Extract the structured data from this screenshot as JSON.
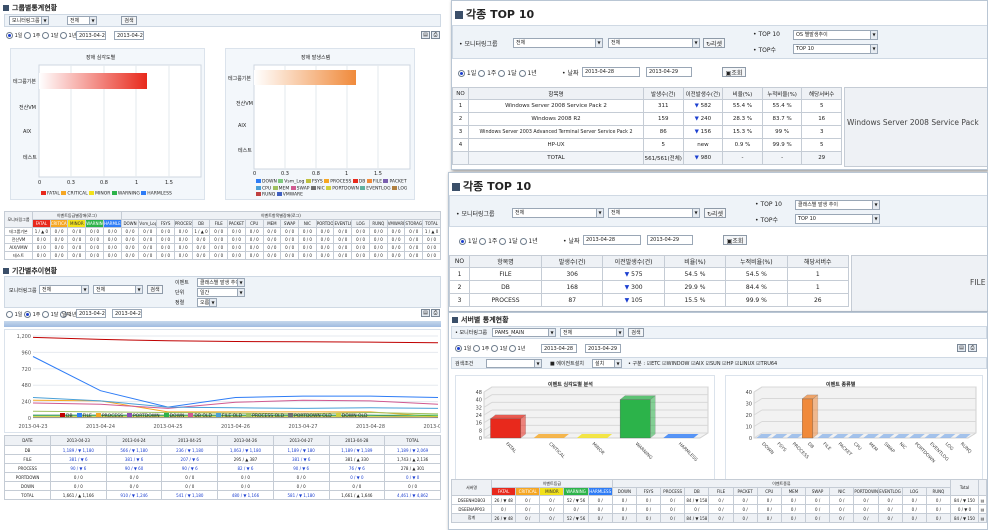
{
  "colors": {
    "fatal": "#e8291c",
    "critical": "#f5a623",
    "minor": "#f2e11a",
    "warning": "#2cb34a",
    "harmless": "#2e7cf6",
    "down_arrow": "#1b3fd0",
    "up_arrow": "#d01b1b"
  },
  "group_status": {
    "title": "그룹별통계현황",
    "filter": {
      "group": "모니터링그룹",
      "all": "전체",
      "search_btn": "검색"
    },
    "period": {
      "day1": "1일",
      "week1": "1주",
      "month1": "1달",
      "year1": "1년",
      "from": "2013-04-28",
      "to": "2013-04-29"
    },
    "chart_left": {
      "title": "장애 심각도별",
      "categories": [
        "테그룹기본",
        "전산VM",
        "AIX",
        "VMW",
        "테스트"
      ],
      "ticks": [
        "0",
        "0.3",
        "0.8",
        "1",
        "1.5"
      ],
      "legend": [
        "FATAL",
        "CRITICAL",
        "MINOR",
        "WARNING",
        "HARMLESS"
      ]
    },
    "chart_right": {
      "title": "장애 발생스템",
      "categories": [
        "테그룹기본",
        "전산VM",
        "AIX",
        "VMW",
        "테스트"
      ],
      "ticks": [
        "0",
        "0.3",
        "0.8",
        "1",
        "1.5"
      ],
      "legend": [
        "DOWN",
        "Vsm_Log",
        "FSYS",
        "PROCESS",
        "DB",
        "FILE",
        "PACKET",
        "CPU",
        "MEM",
        "SWAP",
        "NIC",
        "PORTDOWN",
        "EVENTLOG",
        "LOG",
        "RUNQ",
        "VMWARE"
      ]
    },
    "table": {
      "head_group": "모니터링그룹",
      "head_sev": "이벤트등급별장애(로그)",
      "head_type": "이벤트항목별장애(로그)",
      "sev_cols": [
        "FATAL",
        "CRITICAL",
        "MINOR",
        "WARNING",
        "HARMLESS"
      ],
      "type_cols": [
        "DOWN",
        "Vsm_Log",
        "FSYS",
        "PROCESS",
        "DB",
        "FILE",
        "PACKET",
        "CPU",
        "MEM",
        "SWAP",
        "NIC",
        "PORTDOWN",
        "EVENTLOG",
        "LOG",
        "RUNQ",
        "VMWARE",
        "STORAGE",
        "TOTAL"
      ],
      "rows": [
        {
          "name": "테그룹기본",
          "v": "1 / ▲ 0"
        },
        {
          "name": "전산VM",
          "v": "0 / 0"
        },
        {
          "name": "AIX/VMW",
          "v": "0 / 0"
        },
        {
          "name": "테스트",
          "v": "0 / 0"
        }
      ]
    }
  },
  "period_status": {
    "title": "기간별추이현황",
    "filter": {
      "group": "모니터링그룹",
      "all": "전체",
      "btn": "검색",
      "event_type_label": "이벤트",
      "event_type_value": "클래스별 발생 추이",
      "unit_label": "단위",
      "unit_value": "일간",
      "sort_label": "정렬",
      "sort_value": "오름"
    },
    "period": {
      "day1": "1일",
      "week1": "1주",
      "month1": "1달",
      "year1": "1년",
      "date_label": "날짜",
      "from": "2013-04-22",
      "to": "2013-04-29"
    },
    "chart_data": {
      "type": "line",
      "x": [
        "2013-04-23",
        "2013-04-24",
        "2013-04-25",
        "2013-04-26",
        "2013-04-27",
        "2013-04-28",
        "2013-04-29"
      ],
      "ylim": [
        0,
        1200
      ],
      "yticks": [
        "1,200",
        "960",
        "720",
        "480",
        "240",
        "0"
      ],
      "series": [
        {
          "name": "DB",
          "color": "#c00000",
          "values": [
            1180,
            1150,
            1130,
            1120,
            1115,
            1110,
            1100
          ]
        },
        {
          "name": "FILE",
          "color": "#2e7cf6",
          "values": [
            900,
            400,
            160,
            300,
            320,
            320,
            300
          ]
        },
        {
          "name": "PROCESS",
          "color": "#f5a623",
          "values": [
            260,
            250,
            90,
            90,
            90,
            90,
            20
          ]
        },
        {
          "name": "PORTDOWN",
          "color": "#8a4fb5",
          "values": [
            40,
            40,
            40,
            40,
            40,
            40,
            10
          ]
        },
        {
          "name": "DOWN",
          "color": "#2cb34a",
          "values": [
            40,
            40,
            40,
            40,
            40,
            40,
            40
          ]
        },
        {
          "name": "DB OLD",
          "color": "#d05a90",
          "values": [
            220,
            200,
            140,
            230,
            260,
            250,
            200
          ]
        },
        {
          "name": "FILE OLD",
          "color": "#4aa0d8",
          "values": [
            300,
            250,
            160,
            150,
            140,
            150,
            140
          ]
        },
        {
          "name": "PROCESS OLD",
          "color": "#a0c060",
          "values": [
            100,
            90,
            80,
            70,
            60,
            80,
            60
          ]
        },
        {
          "name": "PORTDOWN OLD",
          "color": "#707070",
          "values": [
            10,
            10,
            10,
            10,
            10,
            10,
            10
          ]
        },
        {
          "name": "DOWN OLD",
          "color": "#cfcf40",
          "values": [
            20,
            20,
            20,
            20,
            20,
            20,
            20
          ]
        }
      ]
    },
    "table": {
      "cols": [
        "DATE",
        "2013-04-23",
        "2013-04-24",
        "2013-04-25",
        "2013-04-26",
        "2013-04-27",
        "2013-04-28",
        "TOTAL"
      ],
      "rows": [
        [
          "DB",
          "1,189 / ▼ 1,180",
          "566 / ▼ 1,180",
          "236 / ▼ 1,180",
          "1,063 / ▼ 1,180",
          "1,189 / ▼ 180",
          "1,189 / ▼ 1,189",
          "1,189 / ▼ 2,069"
        ],
        [
          "FILE",
          "381 / ▼ 6",
          "381 / ▼ 6",
          "207 / ▼ 6",
          "295 / ▲ 387",
          "381 / ▼ 6",
          "381 / ▲ 330",
          "1,743 / ▲ 2,136"
        ],
        [
          "PROCESS",
          "90 / ▼ 6",
          "90 / ▼ 60",
          "90 / ▼ 6",
          "82 / ▼ 6",
          "90 / ▼ 6",
          "76 / ▼ 6",
          "278 / ▲ 301"
        ],
        [
          "PORTDOWN",
          "0 / 0",
          "0 / 0",
          "0 / 0",
          "0 / 0",
          "0 / 0",
          "0 / ▼ 0",
          "0 / ▼ 0"
        ],
        [
          "DOWN",
          "0 / 0",
          "0 / 0",
          "0 / 0",
          "0 / 0",
          "0 / 0",
          "0 / 0",
          "0 / 0"
        ],
        [
          "TOTAL",
          "1,661 / ▲ 1,166",
          "910 / ▼ 1,246",
          "541 / ▼ 1,180",
          "480 / ▼ 1,166",
          "581 / ▼ 1,180",
          "1,661 / ▲ 1,646",
          "4,461 / ▼ 4,862"
        ]
      ]
    }
  },
  "top10_a": {
    "title": "각종 TOP 10",
    "filter": {
      "group_label": "모니터링그룹",
      "all1": "전체",
      "all2": "전체",
      "refresh": "리셋",
      "top10_label": "TOP 10",
      "top10_value": "OS 별발생추이",
      "topn_label": "TOP수",
      "topn_value": "TOP 10"
    },
    "period": {
      "day1": "1일",
      "week1": "1주",
      "month1": "1달",
      "year1": "1년",
      "date_label": "날짜",
      "from": "2013-04-28",
      "to": "2013-04-29",
      "query": "조회"
    },
    "cols": [
      "NO",
      "항목명",
      "발생수(건)",
      "이전발생수(건)",
      "비율(%)",
      "누적비율(%)",
      "해당서버수"
    ],
    "rows": [
      {
        "no": "1",
        "name": "Windows Server 2008 Service Pack 2",
        "cnt": "311",
        "prev": "582",
        "pct": "55.4 %",
        "cum": "55.4 %",
        "srv": "5"
      },
      {
        "no": "2",
        "name": "Windows 2008 R2",
        "cnt": "159",
        "prev": "240",
        "pct": "28.3 %",
        "cum": "83.7 %",
        "srv": "16"
      },
      {
        "no": "3",
        "name": "Windows Server 2003 Advanced Terminal Server Service Pack 2",
        "cnt": "86",
        "prev": "156",
        "pct": "15.3 %",
        "cum": "99 %",
        "srv": "3"
      },
      {
        "no": "4",
        "name": "HP-UX",
        "cnt": "5",
        "prev": "new",
        "pct": "0.9 %",
        "cum": "99.9 %",
        "srv": "5"
      }
    ],
    "total": {
      "label": "TOTAL",
      "cnt": "561/561(전체)",
      "prev": "980",
      "pct": "-",
      "cum": "-",
      "srv": "29"
    },
    "side_label": "Windows Server 2008 Service Pack"
  },
  "top10_b": {
    "title": "각종 TOP 10",
    "filter": {
      "group_label": "모니터링그룹",
      "all1": "전체",
      "all2": "전체",
      "refresh": "리셋",
      "top10_label": "TOP 10",
      "top10_value": "클래스별 발생 추이",
      "topn_label": "TOP수",
      "topn_value": "TOP 10"
    },
    "period": {
      "day1": "1일",
      "week1": "1주",
      "month1": "1달",
      "year1": "1년",
      "date_label": "날짜",
      "from": "2013-04-28",
      "to": "2013-04-29",
      "query": "조회"
    },
    "cols": [
      "NO",
      "항목명",
      "발생수(건)",
      "이전발생수(건)",
      "비율(%)",
      "누적비율(%)",
      "해당서버수"
    ],
    "rows": [
      {
        "no": "1",
        "name": "FILE",
        "cnt": "306",
        "prev": "575",
        "pct": "54.5 %",
        "cum": "54.5 %",
        "srv": "1"
      },
      {
        "no": "2",
        "name": "DB",
        "cnt": "168",
        "prev": "300",
        "pct": "29.9 %",
        "cum": "84.4 %",
        "srv": "1"
      },
      {
        "no": "3",
        "name": "PROCESS",
        "cnt": "87",
        "prev": "105",
        "pct": "15.5 %",
        "cum": "99.9 %",
        "srv": "26"
      }
    ],
    "side_label": "FILE"
  },
  "server_status": {
    "title": "서버별 통계현황",
    "filter": {
      "group_label": "모니터링그룹",
      "group_value": "PAMS_MAIN",
      "all": "전체",
      "btn": "검색"
    },
    "period": {
      "day1": "1일",
      "week1": "1주",
      "month1": "1달",
      "year1": "1년",
      "from": "2013-04-28",
      "to": "2013-04-29"
    },
    "filter2": {
      "search_label": "검색조건",
      "equipment_label": "■ 에이전트설치",
      "equipment_value": "설치",
      "os_label": "구분",
      "os": [
        "ETC",
        "WINDOW",
        "AIX",
        "SUN",
        "HP",
        "LINUX",
        "TRU64"
      ]
    },
    "chart_left": {
      "title": "이벤트 심각도별 분석",
      "yticks": [
        "48",
        "40",
        "32",
        "24",
        "16",
        "8",
        "0"
      ],
      "categories": [
        "FATAL",
        "CRITICAL",
        "MINOR",
        "WARNING",
        "HARMLESS"
      ],
      "values": [
        20,
        0,
        0,
        40,
        0
      ]
    },
    "chart_right": {
      "title": "이벤트 종류별",
      "yticks": [
        "40",
        "30",
        "20",
        "10",
        "0"
      ],
      "categories": [
        "DOWN",
        "FSYS",
        "PROCESS",
        "DB",
        "FILE",
        "PACKET",
        "CPU",
        "MEM",
        "SWAP",
        "NIC",
        "PORTDOWN",
        "EVENTLOG",
        "LOG",
        "RUNQ"
      ],
      "values": [
        0,
        0,
        0,
        34,
        0,
        0,
        0,
        0,
        0,
        0,
        0,
        0,
        0,
        0
      ]
    },
    "table": {
      "head_server": "서버명",
      "head_sev": "이벤트등급",
      "head_type": "이벤트종류",
      "sev_cols": [
        "FATAL",
        "CRITICAL",
        "MINOR",
        "WARNING",
        "HARMLESS"
      ],
      "type_cols": [
        "DOWN",
        "FSYS",
        "PROCESS",
        "DB",
        "FILE",
        "PACKET",
        "CPU",
        "MEM",
        "SWAP",
        "NIC",
        "PORTDOWN",
        "EVENTLOG",
        "LOG",
        "RUNQ"
      ],
      "total_col": "Total",
      "rows": [
        {
          "name": "DSEENHDB03",
          "fatal": "26 / ▼ 48",
          "critical": "0 /",
          "minor": "0 /",
          "warning": "52 / ▼ 56",
          "harmless": "0 /",
          "db": "84 / ▼ 158",
          "total": "84 / ▼ 150"
        },
        {
          "name": "DSEENAPP03",
          "fatal": "0 /",
          "critical": "0 /",
          "minor": "0 /",
          "warning": "0 /",
          "harmless": "0 /",
          "db": "0 /",
          "total": "0 / ▼ 0"
        },
        {
          "name": "합계",
          "fatal": "26 / ▼ 48",
          "critical": "0 /",
          "minor": "0 /",
          "warning": "52 / ▼ 56",
          "harmless": "0 /",
          "db": "84 / ▼ 158",
          "total": "84 / ▼ 150"
        }
      ]
    }
  }
}
